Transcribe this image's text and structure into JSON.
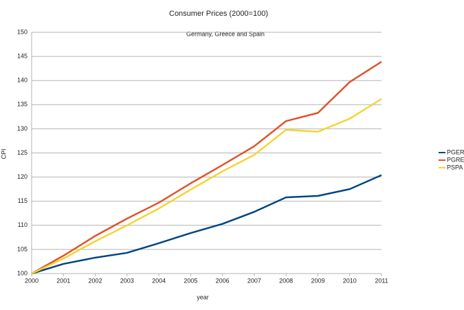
{
  "chart_data": {
    "type": "line",
    "title": "Consumer Prices (2000=100)",
    "subtitle": "Germany, Greece and Spain",
    "xlabel": "year",
    "ylabel": "CPI",
    "x": [
      2000,
      2001,
      2002,
      2003,
      2004,
      2005,
      2006,
      2007,
      2008,
      2009,
      2010,
      2011
    ],
    "xlim": [
      2000,
      2011
    ],
    "xticks": [
      2000,
      2001,
      2002,
      2003,
      2004,
      2005,
      2006,
      2007,
      2008,
      2009,
      2010,
      2011
    ],
    "ylim": [
      100,
      150
    ],
    "yticks": [
      100,
      105,
      110,
      115,
      120,
      125,
      130,
      135,
      140,
      145,
      150
    ],
    "grid": true,
    "legend": "right",
    "series": [
      {
        "name": "PGER",
        "color": "#004586",
        "values": [
          100,
          102.0,
          103.3,
          104.3,
          106.3,
          108.4,
          110.3,
          112.8,
          115.8,
          116.1,
          117.5,
          120.4
        ]
      },
      {
        "name": "PGRE",
        "color": "#e0522a",
        "values": [
          100,
          103.7,
          107.8,
          111.4,
          114.7,
          118.7,
          122.5,
          126.4,
          131.6,
          133.3,
          139.7,
          143.9
        ]
      },
      {
        "name": "PSPA",
        "color": "#f5d332",
        "values": [
          100,
          103.1,
          106.7,
          110.0,
          113.5,
          117.4,
          121.2,
          124.6,
          129.8,
          129.4,
          132.1,
          136.2
        ]
      }
    ]
  }
}
